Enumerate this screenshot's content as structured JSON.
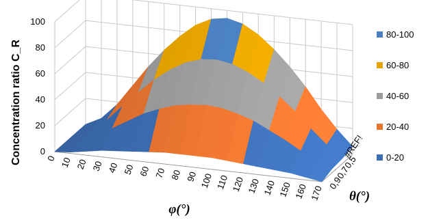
{
  "chart_data": {
    "type": "surface",
    "title": "",
    "ylabel": "Concentration ratio C_R",
    "xlabel": "φ(°)",
    "zlabel": "θ(°)",
    "zlim": [
      0,
      100
    ],
    "z_ticks": [
      "0",
      "20",
      "40",
      "60",
      "80",
      "100"
    ],
    "x_categories": [
      "0",
      "10",
      "20",
      "30",
      "40",
      "50",
      "60",
      "70",
      "80",
      "90",
      "100",
      "110",
      "120",
      "130",
      "140",
      "150",
      "160",
      "170"
    ],
    "depth_categories": [
      "#REF!",
      "0,5",
      "0,7",
      "0,9"
    ],
    "grid": true,
    "legend_position": "right",
    "legend": [
      {
        "label": "80-100",
        "color": "#4a7ec0"
      },
      {
        "label": "60-80",
        "color": "#e6a400"
      },
      {
        "label": "40-60",
        "color": "#9c9c9c"
      },
      {
        "label": "20-40",
        "color": "#e87430"
      },
      {
        "label": "0-20",
        "color": "#3d6eb4"
      }
    ],
    "series": [
      {
        "depth": "#REF!",
        "values": [
          0,
          6,
          18,
          34,
          50,
          64,
          76,
          86,
          92,
          94,
          91,
          84,
          74,
          62,
          48,
          32,
          18,
          6
        ]
      },
      {
        "depth": "0,5",
        "values": [
          0,
          4,
          13,
          25,
          37,
          48,
          57,
          64,
          68,
          69,
          67,
          62,
          55,
          46,
          36,
          24,
          13,
          4
        ]
      },
      {
        "depth": "0,7",
        "values": [
          0,
          3,
          8,
          15,
          22,
          29,
          34,
          38,
          40,
          41,
          40,
          37,
          33,
          27,
          21,
          14,
          8,
          3
        ]
      },
      {
        "depth": "0,9",
        "values": [
          0,
          1,
          3,
          5,
          6,
          7,
          8,
          9,
          9,
          9,
          9,
          8,
          7,
          6,
          5,
          4,
          2,
          0
        ]
      }
    ]
  }
}
